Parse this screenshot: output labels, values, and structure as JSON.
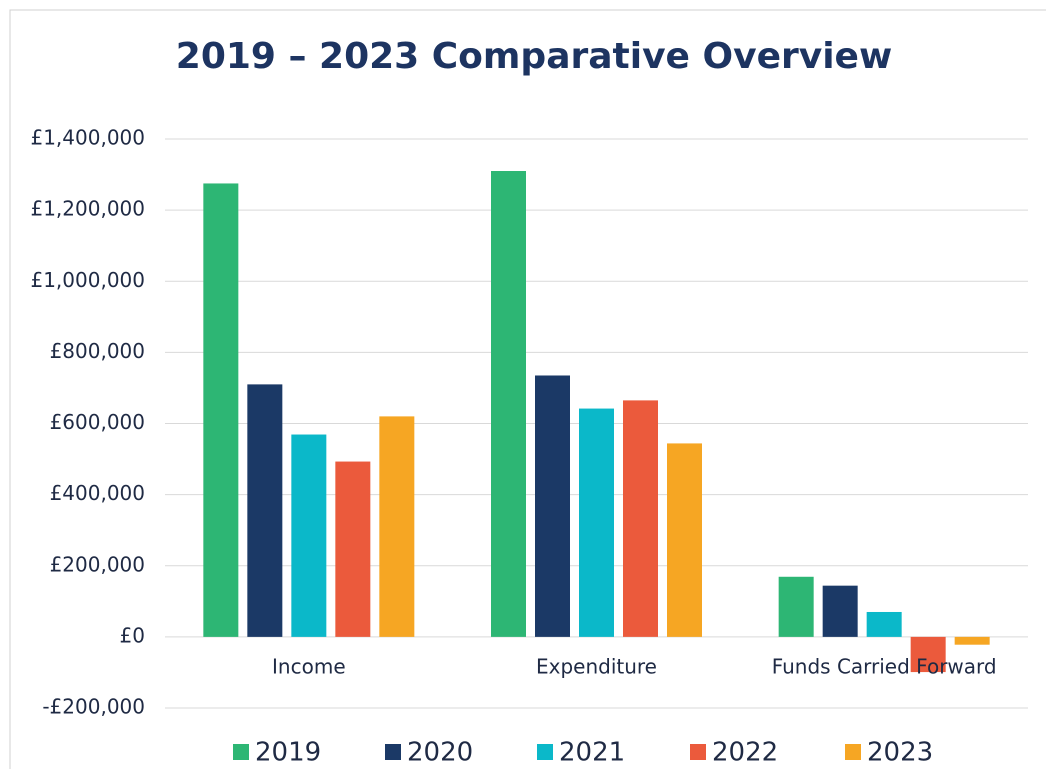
{
  "chart_data": {
    "type": "bar",
    "title": "2019 – 2023 Comparative Overview",
    "categories": [
      "Income",
      "Expenditure",
      "Funds Carried Forward"
    ],
    "series": [
      {
        "name": "2019",
        "color": "#2db674",
        "values": [
          1275000,
          1310000,
          169000
        ]
      },
      {
        "name": "2020",
        "color": "#1b3966",
        "values": [
          710000,
          735000,
          144000
        ]
      },
      {
        "name": "2021",
        "color": "#0bb8c9",
        "values": [
          569000,
          642000,
          70000
        ]
      },
      {
        "name": "2022",
        "color": "#eb5a3c",
        "values": [
          493000,
          665000,
          -99000
        ]
      },
      {
        "name": "2023",
        "color": "#f6a623",
        "values": [
          620000,
          544000,
          -22000
        ]
      }
    ],
    "ylim": [
      -200000,
      1400000
    ],
    "yticks": [
      {
        "value": -200000,
        "label": "-£200,000"
      },
      {
        "value": 0,
        "label": "£0"
      },
      {
        "value": 200000,
        "label": "£200,000"
      },
      {
        "value": 400000,
        "label": "£400,000"
      },
      {
        "value": 600000,
        "label": "£600,000"
      },
      {
        "value": 800000,
        "label": "£800,000"
      },
      {
        "value": 1000000,
        "label": "£1,000,000"
      },
      {
        "value": 1200000,
        "label": "£1,200,000"
      },
      {
        "value": 1400000,
        "label": "£1,400,000"
      }
    ],
    "grid": true,
    "legend": "bottom"
  }
}
